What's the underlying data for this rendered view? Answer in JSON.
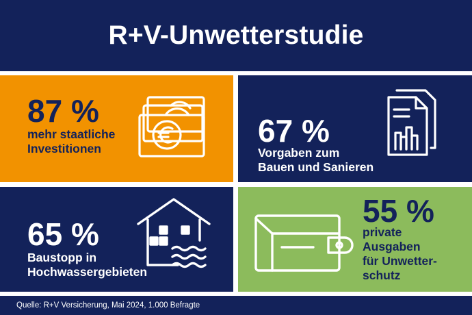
{
  "title": "R+V-Unwetterstudie",
  "colors": {
    "navy": "#13225a",
    "orange": "#f29200",
    "green": "#8cbb5c",
    "white": "#ffffff"
  },
  "tiles": [
    {
      "percent": "87 %",
      "label": "mehr staatliche\nInvestitionen",
      "icon": "euro-banknotes-icon",
      "background": "#f29200",
      "text_color": "#13225a"
    },
    {
      "percent": "67 %",
      "label": "Vorgaben zum\nBauen und Sanieren",
      "icon": "document-chart-icon",
      "background": "#13225a",
      "text_color": "#ffffff"
    },
    {
      "percent": "65 %",
      "label": "Baustopp in\nHochwassergebieten",
      "icon": "flooded-house-icon",
      "background": "#13225a",
      "text_color": "#ffffff"
    },
    {
      "percent": "55 %",
      "label": "private\nAusgaben\nfür Unwetter-\nschutz",
      "icon": "wallet-icon",
      "background": "#8cbb5c",
      "text_color": "#13225a"
    }
  ],
  "source": "Quelle: R+V Versicherung, Mai 2024, 1.000 Befragte"
}
